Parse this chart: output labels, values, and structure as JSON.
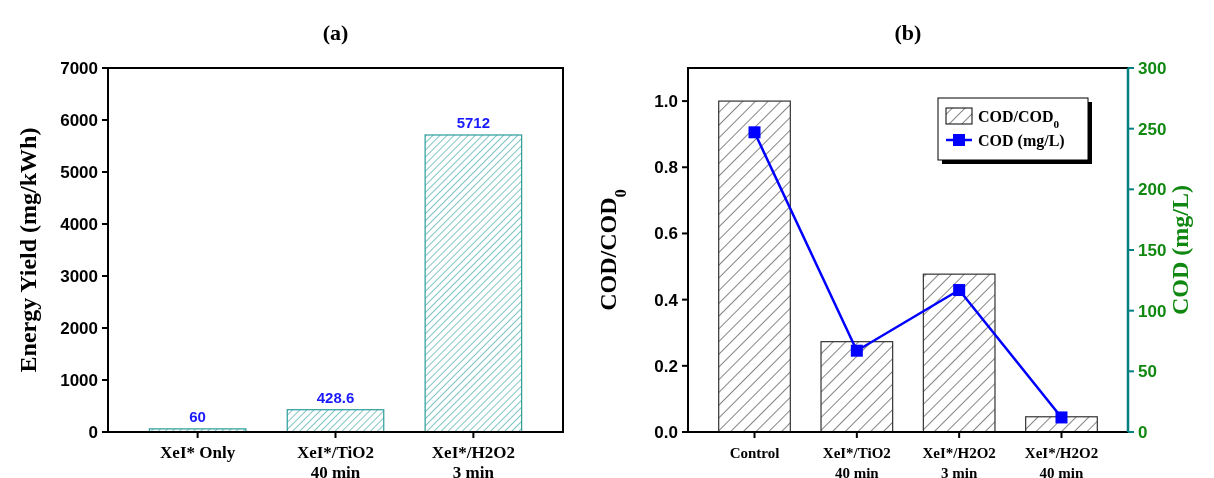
{
  "chart_data": [
    {
      "type": "bar",
      "title": "(a)",
      "ylabel": "Energy Yield (mg/kWh)",
      "categories": [
        "XeI* Only",
        "XeI*/TiO2\n40 min",
        "XeI*/H2O2\n3 min"
      ],
      "series": [
        {
          "color": "#2a9d9a",
          "values": [
            60,
            428.6,
            5712
          ]
        }
      ],
      "ylim": [
        0,
        7000
      ],
      "yticks": [
        0,
        1000,
        2000,
        3000,
        4000,
        5000,
        6000,
        7000
      ],
      "data_labels": true
    },
    {
      "type": "bar",
      "title": "(b)",
      "ylabel": "COD/COD$_{0}$",
      "y2label": "COD (mg/L)",
      "categories": [
        "Control",
        "XeI*/TiO2\n40 min",
        "XeI*/H2O2\n3 min",
        "XeI*/H2O2\n40 min"
      ],
      "series": [
        {
          "name": "COD/COD$_{0}$",
          "color": "#333333",
          "values": [
            1.0,
            0.273,
            0.477,
            0.046
          ]
        },
        {
          "name": "COD (mg/L)",
          "type": "line",
          "axis": "y2",
          "color": "#0000ff",
          "values": [
            247,
            67,
            117,
            12
          ],
          "marker": "square"
        }
      ],
      "ylim": [
        0,
        1.1
      ],
      "yticks": [
        {
          "value": 0,
          "label": "0.0"
        },
        0.2,
        0.4,
        0.6,
        0.8,
        {
          "value": 1,
          "label": "1.0"
        }
      ],
      "y2lim": [
        0,
        300
      ],
      "y2ticks": [
        0,
        50,
        100,
        150,
        200,
        250,
        300
      ],
      "legend": "top right"
    }
  ]
}
